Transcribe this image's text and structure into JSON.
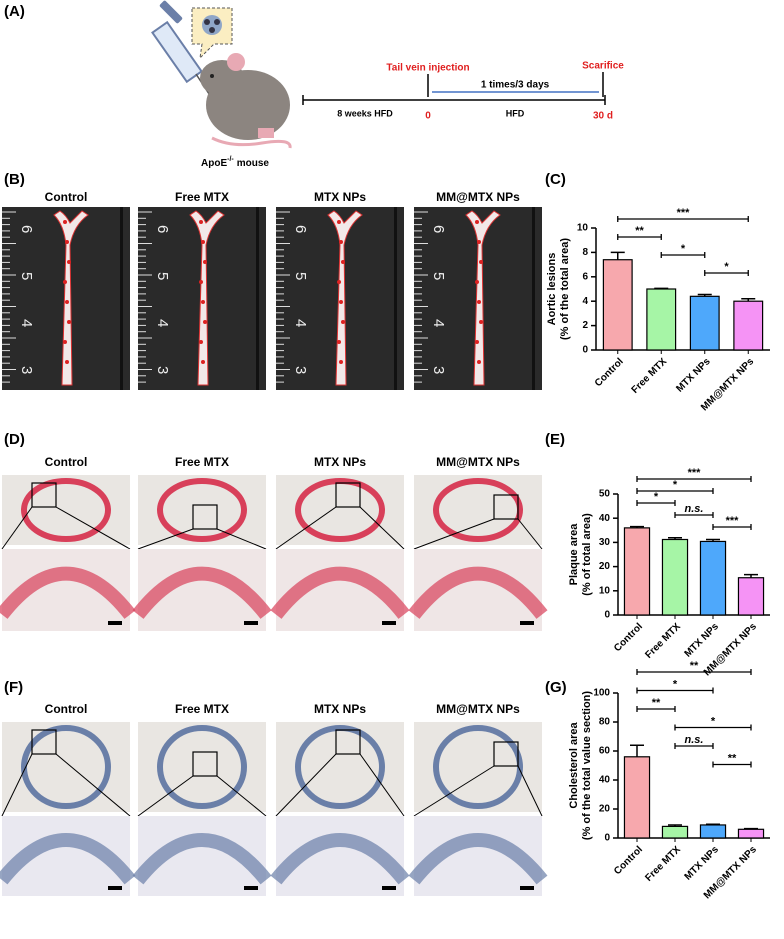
{
  "panels": {
    "a": "(A)",
    "b": "(B)",
    "c": "(C)",
    "d": "(D)",
    "e": "(E)",
    "f": "(F)",
    "g": "(G)"
  },
  "schematic": {
    "mouse": {
      "name": "ApoE",
      "superscript": "-/-",
      "suffix": "mouse"
    },
    "injection": "Tail vein injection",
    "interval": "1 times/3 days",
    "end": "Scarifice",
    "pre_diet": "8 weeks HFD",
    "diet": "HFD",
    "start_day": "0",
    "end_day": "30 d"
  },
  "images": {
    "b": [
      "Control",
      "Free MTX",
      "MTX NPs",
      "MM@MTX NPs"
    ],
    "ruler": [
      "6",
      "5",
      "4",
      "3"
    ],
    "d": [
      "Control",
      "Free MTX",
      "MTX NPs",
      "MM@MTX NPs"
    ],
    "f": [
      "Control",
      "Free MTX",
      "MTX NPs",
      "MM@MTX NPs"
    ]
  },
  "chart_data": [
    {
      "type": "bar",
      "ylabel": [
        "Aortic lesions",
        "(% of the total area)"
      ],
      "categories": [
        "Control",
        "Free MTX",
        "MTX NPs",
        "MM@MTX NPs"
      ],
      "values": [
        7.4,
        5.0,
        4.4,
        4.0
      ],
      "errors": [
        0.6,
        0.05,
        0.15,
        0.2
      ],
      "colors": [
        "#f7a8ad",
        "#a6f5a6",
        "#4ea8fb",
        "#f593f5"
      ],
      "ylim": [
        0,
        10
      ],
      "yticks": [
        0,
        2,
        4,
        6,
        8,
        10
      ],
      "annotations": [
        {
          "groups": [
            0,
            3
          ],
          "text": "***"
        },
        {
          "groups": [
            0,
            1
          ],
          "text": "**"
        },
        {
          "groups": [
            1,
            2
          ],
          "text": "*"
        },
        {
          "groups": [
            2,
            3
          ],
          "text": "*"
        }
      ]
    },
    {
      "type": "bar",
      "ylabel": [
        "Plaque area",
        "(% of total area)"
      ],
      "categories": [
        "Control",
        "Free MTX",
        "MTX NPs",
        "MM@MTX NPs"
      ],
      "values": [
        36,
        31.2,
        30.4,
        15.4
      ],
      "errors": [
        0.5,
        0.7,
        0.8,
        1.3
      ],
      "colors": [
        "#f7a8ad",
        "#a6f5a6",
        "#4ea8fb",
        "#f593f5"
      ],
      "ylim": [
        0,
        50
      ],
      "yticks": [
        0,
        10,
        20,
        30,
        40,
        50
      ],
      "annotations": [
        {
          "groups": [
            0,
            3
          ],
          "text": "***"
        },
        {
          "groups": [
            0,
            2
          ],
          "text": "*"
        },
        {
          "groups": [
            0,
            1
          ],
          "text": "*"
        },
        {
          "groups": [
            1,
            2
          ],
          "text": "n.s."
        },
        {
          "groups": [
            2,
            3
          ],
          "text": "***"
        }
      ]
    },
    {
      "type": "bar",
      "ylabel": [
        "Cholesterol area",
        "(% of the total value section)"
      ],
      "categories": [
        "Control",
        "Free MTX",
        "MTX NPs",
        "MM@MTX NPs"
      ],
      "values": [
        56,
        8,
        9,
        6
      ],
      "errors": [
        8,
        1,
        0.5,
        0.5
      ],
      "colors": [
        "#f7a8ad",
        "#a6f5a6",
        "#4ea8fb",
        "#f593f5"
      ],
      "ylim": [
        0,
        100
      ],
      "yticks": [
        0,
        20,
        40,
        60,
        80,
        100
      ],
      "annotations": [
        {
          "groups": [
            0,
            3
          ],
          "text": "**"
        },
        {
          "groups": [
            0,
            2
          ],
          "text": "*"
        },
        {
          "groups": [
            0,
            1
          ],
          "text": "**"
        },
        {
          "groups": [
            1,
            3
          ],
          "text": "*"
        },
        {
          "groups": [
            1,
            2
          ],
          "text": "n.s."
        },
        {
          "groups": [
            2,
            3
          ],
          "text": "**"
        }
      ]
    }
  ]
}
